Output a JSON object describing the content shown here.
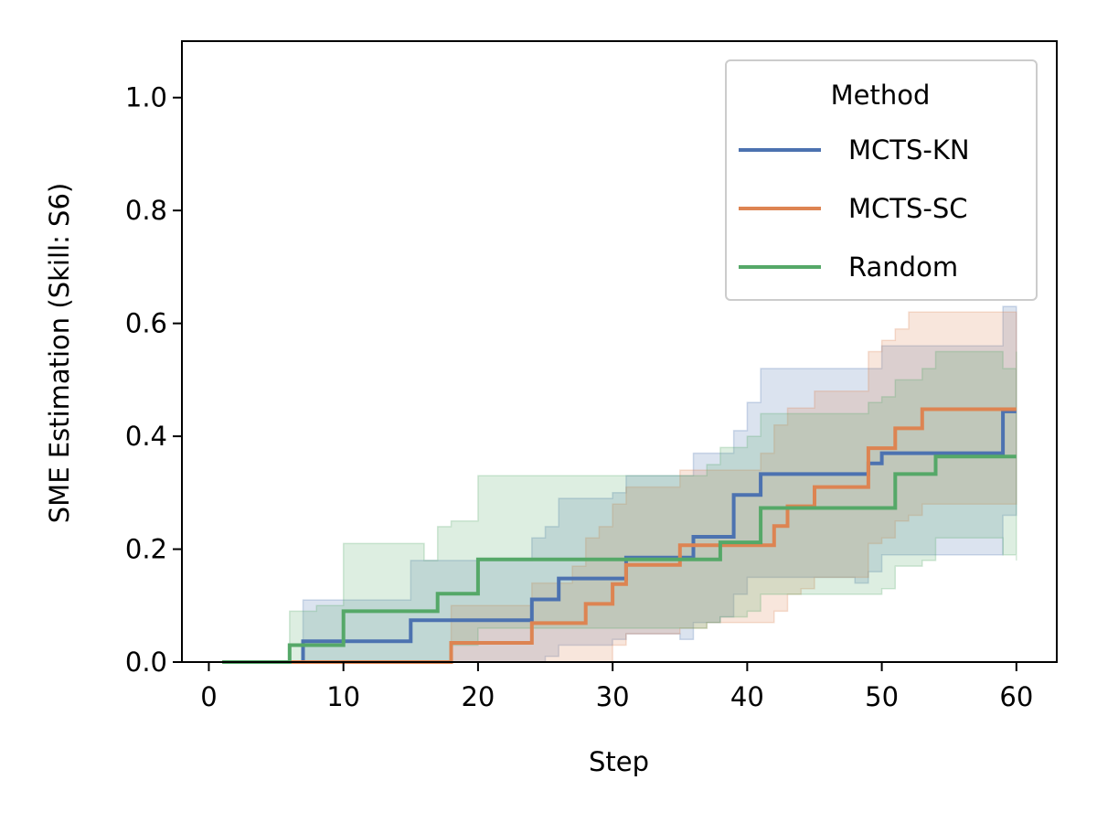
{
  "chart_data": {
    "type": "line",
    "title": "",
    "xlabel": "Step",
    "ylabel": "SME Estimation (Skill: S6)",
    "xlim": [
      -2,
      63
    ],
    "ylim": [
      0,
      1.1
    ],
    "xticks": [
      0,
      10,
      20,
      30,
      40,
      50,
      60
    ],
    "yticks": [
      0.0,
      0.2,
      0.4,
      0.6,
      0.8,
      1.0
    ],
    "xtick_labels": [
      "0",
      "10",
      "20",
      "30",
      "40",
      "50",
      "60"
    ],
    "ytick_labels": [
      "0.0",
      "0.2",
      "0.4",
      "0.6",
      "0.8",
      "1.0"
    ],
    "grid": false,
    "legend": {
      "title": "Method",
      "position": "top-right"
    },
    "series": [
      {
        "name": "MCTS-KN",
        "color": "#4c72b0",
        "x": [
          1,
          6,
          7,
          14,
          15,
          23,
          24,
          25,
          26,
          30,
          31,
          35,
          36,
          38,
          39,
          40,
          41,
          48,
          49,
          50,
          58,
          59,
          60
        ],
        "y": [
          0,
          0,
          0.037,
          0.037,
          0.074,
          0.074,
          0.111,
          0.111,
          0.148,
          0.148,
          0.185,
          0.185,
          0.222,
          0.222,
          0.296,
          0.296,
          0.333,
          0.333,
          0.352,
          0.37,
          0.37,
          0.444,
          0.444
        ],
        "lower": [
          0,
          0,
          0,
          0,
          0,
          0,
          0,
          0.01,
          0.03,
          0.04,
          0.05,
          0.04,
          0.07,
          0.08,
          0.12,
          0.15,
          0.15,
          0.14,
          0.16,
          0.19,
          0.19,
          0.26,
          0.26
        ],
        "upper": [
          0,
          0,
          0.11,
          0.11,
          0.18,
          0.18,
          0.22,
          0.24,
          0.29,
          0.3,
          0.33,
          0.33,
          0.37,
          0.37,
          0.41,
          0.46,
          0.52,
          0.52,
          0.52,
          0.56,
          0.56,
          0.63,
          0.63
        ]
      },
      {
        "name": "MCTS-SC",
        "color": "#dd8452",
        "x": [
          1,
          17,
          18,
          23,
          24,
          26,
          27,
          28,
          29,
          30,
          31,
          34,
          35,
          37,
          38,
          41,
          42,
          43,
          44,
          45,
          48,
          49,
          50,
          51,
          52,
          53,
          59,
          60
        ],
        "y": [
          0,
          0,
          0.034,
          0.034,
          0.069,
          0.069,
          0.069,
          0.103,
          0.103,
          0.138,
          0.172,
          0.172,
          0.207,
          0.207,
          0.207,
          0.207,
          0.241,
          0.276,
          0.276,
          0.31,
          0.31,
          0.379,
          0.379,
          0.414,
          0.414,
          0.448,
          0.448,
          0.448
        ],
        "lower": [
          0,
          0,
          0,
          0,
          0,
          0,
          0,
          0,
          0,
          0.03,
          0.05,
          0.05,
          0.06,
          0.07,
          0.07,
          0.07,
          0.09,
          0.12,
          0.13,
          0.15,
          0.15,
          0.21,
          0.22,
          0.25,
          0.26,
          0.28,
          0.28,
          0.28
        ],
        "upper": [
          0,
          0,
          0.1,
          0.1,
          0.14,
          0.14,
          0.17,
          0.22,
          0.24,
          0.28,
          0.31,
          0.31,
          0.34,
          0.34,
          0.34,
          0.37,
          0.42,
          0.45,
          0.45,
          0.48,
          0.48,
          0.55,
          0.57,
          0.59,
          0.62,
          0.62,
          0.62,
          0.62
        ]
      },
      {
        "name": "Random",
        "color": "#55a868",
        "x": [
          1,
          5,
          6,
          8,
          10,
          16,
          17,
          18,
          20,
          36,
          37,
          38,
          39,
          40,
          41,
          49,
          50,
          51,
          53,
          54,
          59,
          60
        ],
        "y": [
          0,
          0,
          0.03,
          0.03,
          0.09,
          0.09,
          0.121,
          0.121,
          0.182,
          0.182,
          0.182,
          0.212,
          0.212,
          0.212,
          0.273,
          0.273,
          0.273,
          0.333,
          0.333,
          0.364,
          0.364,
          0.364
        ],
        "lower": [
          0,
          0,
          0,
          0,
          0,
          0,
          0,
          0.03,
          0.06,
          0.06,
          0.07,
          0.08,
          0.08,
          0.09,
          0.12,
          0.12,
          0.13,
          0.17,
          0.18,
          0.22,
          0.19,
          0.18
        ],
        "upper": [
          0,
          0,
          0.09,
          0.1,
          0.21,
          0.18,
          0.24,
          0.25,
          0.33,
          0.33,
          0.35,
          0.38,
          0.38,
          0.4,
          0.44,
          0.46,
          0.47,
          0.5,
          0.52,
          0.55,
          0.52,
          0.55
        ]
      }
    ]
  }
}
